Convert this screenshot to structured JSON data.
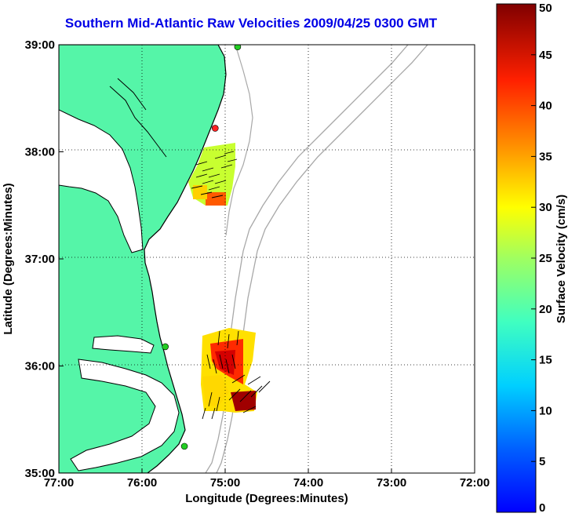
{
  "title": "Southern Mid-Atlantic Raw Velocities 2009/04/25 0300 GMT",
  "map": {
    "xlabel": "Longitude (Degrees:Minutes)",
    "ylabel": "Latitude (Degrees:Minutes)",
    "x_ticks": [
      "77:00",
      "76:00",
      "75:00",
      "74:00",
      "73:00",
      "72:00"
    ],
    "y_ticks": [
      "39:00",
      "38:00",
      "37:00",
      "36:00",
      "35:00"
    ],
    "land_color": "#55f5a8",
    "water_color": "#ffffff",
    "coast_color": "#000000",
    "bathymetry_color": "#a8a8a8",
    "grid": "dotted",
    "stations": [
      {
        "lat": 38.98,
        "lon": -74.85,
        "color": "#22cc22"
      },
      {
        "lat": 38.22,
        "lon": -75.12,
        "color": "#ff2222"
      },
      {
        "lat": 36.18,
        "lon": -75.72,
        "color": "#22cc22"
      },
      {
        "lat": 35.25,
        "lon": -75.49,
        "color": "#22cc22"
      }
    ]
  },
  "colorbar": {
    "label": "Surface Velocity (cm/s)",
    "min": 0,
    "max": 50,
    "ticks": [
      "0",
      "5",
      "10",
      "15",
      "20",
      "25",
      "30",
      "35",
      "40",
      "45",
      "50"
    ],
    "colormap": "jet"
  }
}
